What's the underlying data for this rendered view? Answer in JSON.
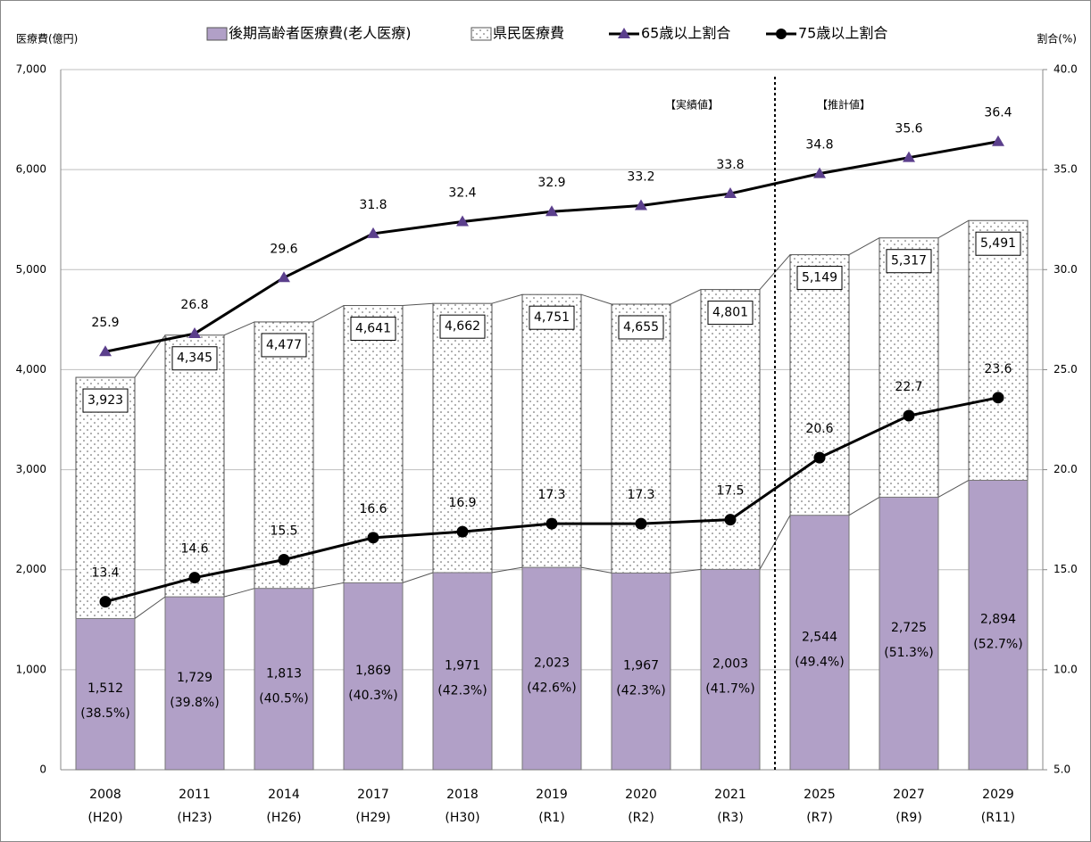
{
  "chart_data": {
    "type": "bar",
    "y_axis_label": "医療費(億円)",
    "y2_axis_label": "割合(%)",
    "annotations": [
      "【実績値】",
      "【推計値】"
    ],
    "categories": [
      "2008",
      "2011",
      "2014",
      "2017",
      "2018",
      "2019",
      "2020",
      "2021",
      "2025",
      "2027",
      "2029"
    ],
    "category_sublabels": [
      "(H20)",
      "(H23)",
      "(H26)",
      "(H29)",
      "(H30)",
      "(R1)",
      "(R2)",
      "(R3)",
      "(R7)",
      "(R9)",
      "(R11)"
    ],
    "series": [
      {
        "name": "後期高齢者医療費(老人医療)",
        "color": "#b1a0c7",
        "values": [
          1512,
          1729,
          1813,
          1869,
          1971,
          2023,
          1967,
          2003,
          2544,
          2725,
          2894
        ],
        "value_labels": [
          "1,512",
          "1,729",
          "1,813",
          "1,869",
          "1,971",
          "2,023",
          "1,967",
          "2,003",
          "2,544",
          "2,725",
          "2,894"
        ],
        "share_labels": [
          "(38.5%)",
          "(39.8%)",
          "(40.5%)",
          "(40.3%)",
          "(42.3%)",
          "(42.6%)",
          "(42.3%)",
          "(41.7%)",
          "(49.4%)",
          "(51.3%)",
          "(52.7%)"
        ]
      },
      {
        "name": "県民医療費",
        "color": "#ffffff",
        "values": [
          3923,
          4345,
          4477,
          4641,
          4662,
          4751,
          4655,
          4801,
          5149,
          5317,
          5491
        ],
        "value_labels": [
          "3,923",
          "4,345",
          "4,477",
          "4,641",
          "4,662",
          "4,751",
          "4,655",
          "4,801",
          "5,149",
          "5,317",
          "5,491"
        ]
      },
      {
        "name": "65歳以上割合",
        "color": "#5b3f8c",
        "axis": "y2",
        "marker": "triangle",
        "values": [
          25.9,
          26.8,
          29.6,
          31.8,
          32.4,
          32.9,
          33.2,
          33.8,
          34.8,
          35.6,
          36.4
        ]
      },
      {
        "name": "75歳以上割合",
        "color": "#000000",
        "axis": "y2",
        "marker": "circle",
        "values": [
          13.4,
          14.6,
          15.5,
          16.6,
          16.9,
          17.3,
          17.3,
          17.5,
          20.6,
          22.7,
          23.6
        ]
      }
    ],
    "ylim": [
      0,
      7000
    ],
    "yticks": [
      0,
      {
        "value": 1000,
        "label": "1,000"
      },
      {
        "value": 2000,
        "label": "2,000"
      },
      {
        "value": 3000,
        "label": "3,000"
      },
      {
        "value": 4000,
        "label": "4,000"
      },
      {
        "value": 5000,
        "label": "5,000"
      },
      {
        "value": 6000,
        "label": "6,000"
      },
      {
        "value": 7000,
        "label": "7,000"
      }
    ],
    "y2lim": [
      5,
      40
    ],
    "y2ticks": [
      {
        "value": 5,
        "label": "5.0"
      },
      {
        "value": 10,
        "label": "10.0"
      },
      {
        "value": 15,
        "label": "15.0"
      },
      {
        "value": 20,
        "label": "20.0"
      },
      {
        "value": 25,
        "label": "25.0"
      },
      {
        "value": 30,
        "label": "30.0"
      },
      {
        "value": 35,
        "label": "35.0"
      },
      {
        "value": 40,
        "label": "40.0"
      }
    ],
    "grid": true
  }
}
